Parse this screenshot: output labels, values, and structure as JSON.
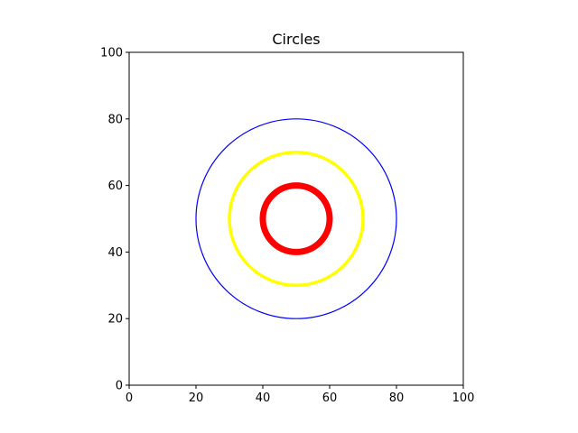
{
  "chart_data": {
    "type": "scatter",
    "title": "Circles",
    "xlabel": "",
    "ylabel": "",
    "xlim": [
      0,
      100
    ],
    "ylim": [
      0,
      100
    ],
    "grid": false,
    "x_ticks": [
      0,
      20,
      40,
      60,
      80,
      100
    ],
    "y_ticks": [
      0,
      20,
      40,
      60,
      80,
      100
    ],
    "circles": [
      {
        "center": [
          50,
          50
        ],
        "radius": 30,
        "color": "#0000ff",
        "line_weight": "thin"
      },
      {
        "center": [
          50,
          50
        ],
        "radius": 20,
        "color": "#ffff00",
        "line_weight": "medium"
      },
      {
        "center": [
          50,
          50
        ],
        "radius": 10,
        "color": "#ff0000",
        "line_weight": "thick"
      }
    ]
  }
}
